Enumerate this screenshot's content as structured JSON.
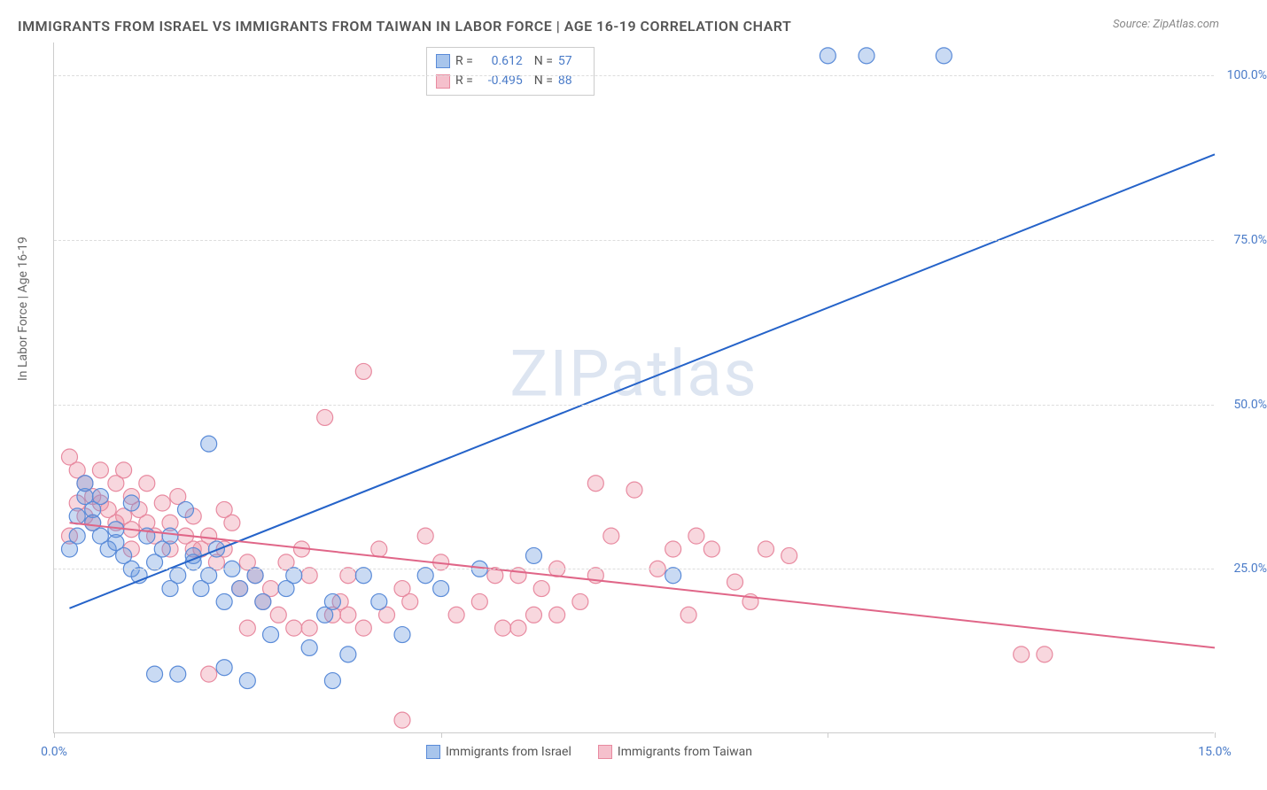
{
  "title": "IMMIGRANTS FROM ISRAEL VS IMMIGRANTS FROM TAIWAN IN LABOR FORCE | AGE 16-19 CORRELATION CHART",
  "source": "Source: ZipAtlas.com",
  "chart": {
    "type": "scatter",
    "y_label": "In Labor Force | Age 16-19",
    "xlim": [
      0,
      15
    ],
    "ylim": [
      0,
      105
    ],
    "x_ticks": [
      0,
      5,
      10,
      15
    ],
    "x_tick_labels": [
      "0.0%",
      "",
      "",
      "15.0%"
    ],
    "y_ticks": [
      25,
      50,
      75,
      100
    ],
    "y_tick_labels": [
      "25.0%",
      "50.0%",
      "75.0%",
      "100.0%"
    ],
    "grid_color": "#dddddd",
    "background_color": "#ffffff",
    "watermark": "ZIPatlas",
    "series": [
      {
        "name": "Immigrants from Israel",
        "color_fill": "rgba(100,150,220,0.35)",
        "color_stroke": "#5a8bd8",
        "swatch_fill": "#a8c5ec",
        "swatch_stroke": "#5a8bd8",
        "r_value": "0.612",
        "n_value": "57",
        "marker_radius": 9,
        "trend_line": {
          "x1": 0.2,
          "y1": 19,
          "x2": 15,
          "y2": 88,
          "stroke": "#2563c9",
          "width": 2
        },
        "points": [
          [
            0.2,
            28
          ],
          [
            0.3,
            30
          ],
          [
            0.3,
            33
          ],
          [
            0.4,
            36
          ],
          [
            0.5,
            34
          ],
          [
            0.5,
            32
          ],
          [
            0.6,
            30
          ],
          [
            0.7,
            28
          ],
          [
            0.8,
            31
          ],
          [
            0.8,
            29
          ],
          [
            0.9,
            27
          ],
          [
            1.0,
            25
          ],
          [
            1.0,
            35
          ],
          [
            1.1,
            24
          ],
          [
            1.2,
            30
          ],
          [
            1.3,
            26
          ],
          [
            1.4,
            28
          ],
          [
            1.5,
            22
          ],
          [
            1.5,
            30
          ],
          [
            1.6,
            24
          ],
          [
            1.7,
            34
          ],
          [
            1.8,
            26
          ],
          [
            1.9,
            22
          ],
          [
            2.0,
            44
          ],
          [
            2.0,
            24
          ],
          [
            2.1,
            28
          ],
          [
            2.2,
            20
          ],
          [
            2.3,
            25
          ],
          [
            2.4,
            22
          ],
          [
            2.5,
            8
          ],
          [
            2.6,
            24
          ],
          [
            2.7,
            20
          ],
          [
            2.8,
            15
          ],
          [
            1.3,
            9
          ],
          [
            1.6,
            9
          ],
          [
            3.0,
            22
          ],
          [
            3.1,
            24
          ],
          [
            3.3,
            13
          ],
          [
            3.5,
            18
          ],
          [
            3.6,
            8
          ],
          [
            3.6,
            20
          ],
          [
            3.8,
            12
          ],
          [
            4.0,
            24
          ],
          [
            4.2,
            20
          ],
          [
            4.5,
            15
          ],
          [
            5.0,
            22
          ],
          [
            4.8,
            24
          ],
          [
            5.5,
            25
          ],
          [
            6.2,
            27
          ],
          [
            8.0,
            24
          ],
          [
            10.0,
            103
          ],
          [
            10.5,
            103
          ],
          [
            11.5,
            103
          ],
          [
            2.2,
            10
          ],
          [
            1.8,
            27
          ],
          [
            0.4,
            38
          ],
          [
            0.6,
            36
          ]
        ]
      },
      {
        "name": "Immigrants from Taiwan",
        "color_fill": "rgba(235,140,160,0.35)",
        "color_stroke": "#e88aa0",
        "swatch_fill": "#f5c0cc",
        "swatch_stroke": "#e88aa0",
        "r_value": "-0.495",
        "n_value": "88",
        "marker_radius": 9,
        "trend_line": {
          "x1": 0.2,
          "y1": 32,
          "x2": 15,
          "y2": 13,
          "stroke": "#e06688",
          "width": 2
        },
        "points": [
          [
            0.2,
            30
          ],
          [
            0.2,
            42
          ],
          [
            0.3,
            40
          ],
          [
            0.3,
            35
          ],
          [
            0.4,
            38
          ],
          [
            0.4,
            33
          ],
          [
            0.5,
            36
          ],
          [
            0.5,
            32
          ],
          [
            0.6,
            40
          ],
          [
            0.6,
            35
          ],
          [
            0.7,
            34
          ],
          [
            0.8,
            32
          ],
          [
            0.8,
            38
          ],
          [
            0.9,
            40
          ],
          [
            0.9,
            33
          ],
          [
            1.0,
            36
          ],
          [
            1.0,
            31
          ],
          [
            1.1,
            34
          ],
          [
            1.2,
            32
          ],
          [
            1.2,
            38
          ],
          [
            1.3,
            30
          ],
          [
            1.4,
            35
          ],
          [
            1.5,
            32
          ],
          [
            1.5,
            28
          ],
          [
            1.6,
            36
          ],
          [
            1.7,
            30
          ],
          [
            1.8,
            33
          ],
          [
            1.9,
            28
          ],
          [
            2.0,
            30
          ],
          [
            2.1,
            26
          ],
          [
            2.2,
            28
          ],
          [
            2.3,
            32
          ],
          [
            2.4,
            22
          ],
          [
            2.5,
            26
          ],
          [
            2.6,
            24
          ],
          [
            2.7,
            20
          ],
          [
            2.8,
            22
          ],
          [
            2.9,
            18
          ],
          [
            3.0,
            26
          ],
          [
            3.1,
            16
          ],
          [
            3.2,
            28
          ],
          [
            3.3,
            24
          ],
          [
            3.5,
            48
          ],
          [
            3.7,
            20
          ],
          [
            3.8,
            18
          ],
          [
            4.0,
            16
          ],
          [
            4.0,
            55
          ],
          [
            4.2,
            28
          ],
          [
            4.5,
            22
          ],
          [
            4.5,
            2
          ],
          [
            4.8,
            30
          ],
          [
            5.0,
            26
          ],
          [
            5.2,
            18
          ],
          [
            5.5,
            20
          ],
          [
            5.8,
            16
          ],
          [
            6.0,
            24
          ],
          [
            6.2,
            18
          ],
          [
            6.3,
            22
          ],
          [
            6.5,
            25
          ],
          [
            6.8,
            20
          ],
          [
            7.0,
            24
          ],
          [
            7.2,
            30
          ],
          [
            7.5,
            37
          ],
          [
            7.8,
            25
          ],
          [
            8.0,
            28
          ],
          [
            8.2,
            18
          ],
          [
            8.3,
            30
          ],
          [
            8.5,
            28
          ],
          [
            8.8,
            23
          ],
          [
            9.0,
            20
          ],
          [
            9.2,
            28
          ],
          [
            9.5,
            27
          ],
          [
            3.3,
            16
          ],
          [
            3.6,
            18
          ],
          [
            4.3,
            18
          ],
          [
            4.6,
            20
          ],
          [
            2.0,
            9
          ],
          [
            2.5,
            16
          ],
          [
            3.8,
            24
          ],
          [
            12.5,
            12
          ],
          [
            12.8,
            12
          ],
          [
            5.7,
            24
          ],
          [
            6.0,
            16
          ],
          [
            7.0,
            38
          ],
          [
            6.5,
            18
          ],
          [
            1.8,
            28
          ],
          [
            2.2,
            34
          ],
          [
            1.0,
            28
          ]
        ]
      }
    ],
    "bottom_legend": [
      {
        "label": "Immigrants from Israel",
        "fill": "#a8c5ec",
        "stroke": "#5a8bd8"
      },
      {
        "label": "Immigrants from Taiwan",
        "fill": "#f5c0cc",
        "stroke": "#e88aa0"
      }
    ]
  }
}
